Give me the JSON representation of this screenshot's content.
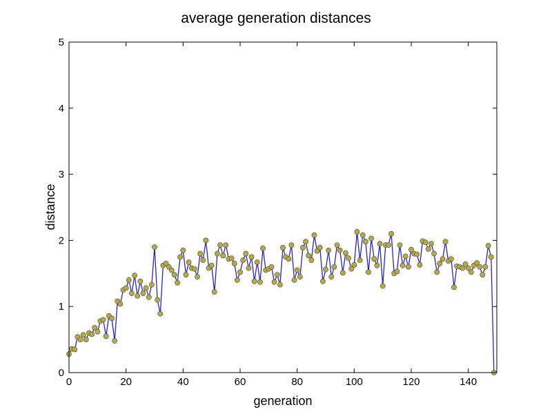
{
  "chart_data": {
    "type": "line",
    "title": "average generation distances",
    "xlabel": "generation",
    "ylabel": "distance",
    "xlim": [
      0,
      150
    ],
    "ylim": [
      0,
      5
    ],
    "xticks": [
      0,
      20,
      40,
      60,
      80,
      100,
      120,
      140
    ],
    "yticks": [
      0,
      1,
      2,
      3,
      4,
      5
    ],
    "grid": false,
    "legend": "none",
    "series": [
      {
        "line_color": "#2323cc",
        "marker": "circle",
        "marker_color": "#b8aa42",
        "x": [
          0,
          1,
          2,
          3,
          4,
          5,
          6,
          7,
          8,
          9,
          10,
          11,
          12,
          13,
          14,
          15,
          16,
          17,
          18,
          19,
          20,
          21,
          22,
          23,
          24,
          25,
          26,
          27,
          28,
          29,
          30,
          31,
          32,
          33,
          34,
          35,
          36,
          37,
          38,
          39,
          40,
          41,
          42,
          43,
          44,
          45,
          46,
          47,
          48,
          49,
          50,
          51,
          52,
          53,
          54,
          55,
          56,
          57,
          58,
          59,
          60,
          61,
          62,
          63,
          64,
          65,
          66,
          67,
          68,
          69,
          70,
          71,
          72,
          73,
          74,
          75,
          76,
          77,
          78,
          79,
          80,
          81,
          82,
          83,
          84,
          85,
          86,
          87,
          88,
          89,
          90,
          91,
          92,
          93,
          94,
          95,
          96,
          97,
          98,
          99,
          100,
          101,
          102,
          103,
          104,
          105,
          106,
          107,
          108,
          109,
          110,
          111,
          112,
          113,
          114,
          115,
          116,
          117,
          118,
          119,
          120,
          121,
          122,
          123,
          124,
          125,
          126,
          127,
          128,
          129,
          130,
          131,
          132,
          133,
          134,
          135,
          136,
          137,
          138,
          139,
          140,
          141,
          142,
          143,
          144,
          145,
          146,
          147,
          148,
          149
        ],
        "y": [
          0.28,
          0.36,
          0.35,
          0.54,
          0.5,
          0.57,
          0.5,
          0.6,
          0.58,
          0.68,
          0.62,
          0.78,
          0.8,
          0.55,
          0.86,
          0.82,
          0.48,
          1.08,
          1.04,
          1.25,
          1.28,
          1.4,
          1.2,
          1.47,
          1.16,
          1.38,
          1.2,
          1.28,
          1.14,
          1.33,
          1.9,
          1.1,
          0.89,
          1.62,
          1.65,
          1.6,
          1.55,
          1.48,
          1.36,
          1.75,
          1.85,
          1.48,
          1.67,
          1.58,
          1.57,
          1.45,
          1.8,
          1.7,
          2.0,
          1.58,
          1.62,
          1.22,
          1.8,
          1.93,
          1.77,
          1.93,
          1.72,
          1.73,
          1.65,
          1.4,
          1.52,
          1.7,
          1.8,
          1.58,
          1.75,
          1.38,
          1.67,
          1.37,
          1.88,
          1.55,
          1.57,
          1.6,
          1.37,
          1.48,
          1.33,
          1.89,
          1.75,
          1.72,
          1.93,
          1.4,
          1.55,
          1.45,
          1.89,
          1.98,
          1.77,
          1.7,
          2.08,
          1.84,
          1.89,
          1.38,
          1.56,
          1.85,
          1.45,
          1.6,
          1.93,
          1.85,
          1.51,
          1.81,
          1.73,
          1.57,
          1.63,
          2.13,
          1.7,
          2.08,
          1.98,
          1.52,
          2.03,
          1.72,
          1.62,
          1.95,
          1.31,
          1.93,
          1.93,
          2.1,
          1.5,
          1.53,
          1.93,
          1.62,
          1.76,
          1.6,
          1.86,
          1.8,
          1.79,
          1.63,
          1.99,
          1.97,
          1.87,
          1.95,
          1.8,
          1.52,
          1.65,
          1.72,
          1.98,
          1.69,
          1.72,
          1.29,
          1.61,
          1.6,
          1.58,
          1.64,
          1.58,
          1.52,
          1.62,
          1.66,
          1.6,
          1.48,
          1.6,
          1.92,
          1.75,
          0.0
        ]
      }
    ]
  }
}
